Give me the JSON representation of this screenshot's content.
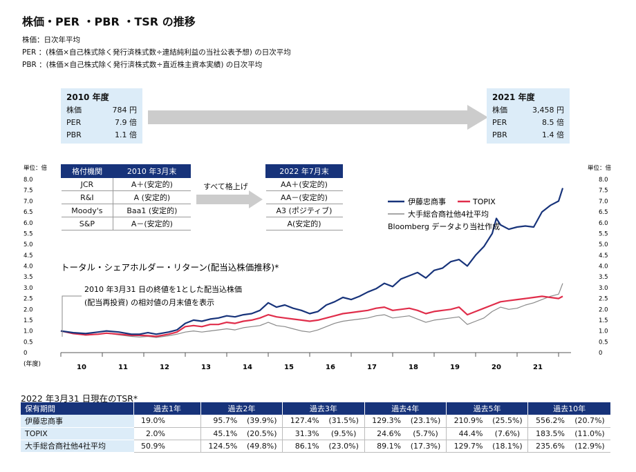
{
  "title": "株価・PER ・PBR ・TSR の推移",
  "definitions": [
    "株価：日次年平均",
    "PER ：(株価×自己株式除く発行済株式数÷連結純利益の当社公表予想) の日次平均",
    "PBR ：(株価×自己株式除く発行済株式数÷直近株主資本実績) の日次平均"
  ],
  "box2010": {
    "year": "2010 年度",
    "rows": [
      {
        "label": "株価",
        "value": "784 円"
      },
      {
        "label": "PER",
        "value": "7.9 倍"
      },
      {
        "label": "PBR",
        "value": "1.1 倍"
      }
    ]
  },
  "box2021": {
    "year": "2021 年度",
    "rows": [
      {
        "label": "株価",
        "value": "3,458 円"
      },
      {
        "label": "PER",
        "value": "8.5 倍"
      },
      {
        "label": "PBR",
        "value": "1.4 倍"
      }
    ]
  },
  "ratings": {
    "header": [
      "格付機関",
      "2010 年3月末"
    ],
    "rows": [
      [
        "JCR",
        "A＋(安定的)"
      ],
      [
        "R&I",
        "A (安定的)"
      ],
      [
        "Moody's",
        "Baa1 (安定的)"
      ],
      [
        "S&P",
        "A－(安定的)"
      ]
    ],
    "arrow_label": "すべて格上げ",
    "header_after": "2022 年7月末",
    "rows_after": [
      "AA＋(安定的)",
      "AA－(安定的)",
      "A3 (ポジティブ)",
      "A(安定的)"
    ]
  },
  "chart_data": {
    "type": "line",
    "title": "トータル・シェアホルダー・リターン(配当込株価推移)*",
    "note": [
      "2010 年3月31 日の終値を1とした配当込株価",
      "(配当再投資) の相対値の月末値を表示"
    ],
    "ylabel": "単位：倍",
    "xlabel": "(年度)",
    "source": "Bloomberg データより当社作成",
    "ylim": [
      0,
      8
    ],
    "yticks": [
      "0",
      "0.5",
      "1.0",
      "1.5",
      "2.0",
      "2.5",
      "3.0",
      "3.5",
      "4.0",
      "4.5",
      "5.0",
      "5.5",
      "6.0",
      "6.5",
      "7.0",
      "7.5",
      "8.0"
    ],
    "categories": [
      "10",
      "11",
      "12",
      "13",
      "14",
      "15",
      "16",
      "17",
      "18",
      "19",
      "20",
      "21"
    ],
    "x_range": [
      2010,
      2022.3
    ],
    "series": [
      {
        "name": "伊藤忠商事",
        "color": "#17337a",
        "points": [
          [
            2010,
            1.0
          ],
          [
            2010.3,
            0.92
          ],
          [
            2010.6,
            0.88
          ],
          [
            2010.9,
            0.95
          ],
          [
            2011.1,
            1.0
          ],
          [
            2011.4,
            0.95
          ],
          [
            2011.7,
            0.85
          ],
          [
            2011.9,
            0.85
          ],
          [
            2012.1,
            0.92
          ],
          [
            2012.3,
            0.85
          ],
          [
            2012.6,
            0.95
          ],
          [
            2012.8,
            1.05
          ],
          [
            2013.0,
            1.35
          ],
          [
            2013.2,
            1.5
          ],
          [
            2013.4,
            1.45
          ],
          [
            2013.6,
            1.55
          ],
          [
            2013.8,
            1.6
          ],
          [
            2014.0,
            1.7
          ],
          [
            2014.2,
            1.65
          ],
          [
            2014.4,
            1.75
          ],
          [
            2014.6,
            1.8
          ],
          [
            2014.8,
            1.95
          ],
          [
            2015.0,
            2.3
          ],
          [
            2015.2,
            2.1
          ],
          [
            2015.4,
            2.2
          ],
          [
            2015.6,
            2.05
          ],
          [
            2015.8,
            1.95
          ],
          [
            2016.0,
            1.8
          ],
          [
            2016.2,
            1.9
          ],
          [
            2016.4,
            2.2
          ],
          [
            2016.6,
            2.35
          ],
          [
            2016.8,
            2.55
          ],
          [
            2017.0,
            2.45
          ],
          [
            2017.2,
            2.6
          ],
          [
            2017.4,
            2.8
          ],
          [
            2017.6,
            2.95
          ],
          [
            2017.8,
            3.2
          ],
          [
            2018.0,
            3.05
          ],
          [
            2018.2,
            3.4
          ],
          [
            2018.4,
            3.55
          ],
          [
            2018.6,
            3.7
          ],
          [
            2018.8,
            3.45
          ],
          [
            2019.0,
            3.8
          ],
          [
            2019.2,
            3.9
          ],
          [
            2019.4,
            4.2
          ],
          [
            2019.6,
            4.3
          ],
          [
            2019.8,
            4.0
          ],
          [
            2020.0,
            4.5
          ],
          [
            2020.2,
            4.9
          ],
          [
            2020.4,
            5.5
          ],
          [
            2020.5,
            6.2
          ],
          [
            2020.6,
            5.9
          ],
          [
            2020.8,
            5.7
          ],
          [
            2021.0,
            5.8
          ],
          [
            2021.2,
            5.85
          ],
          [
            2021.4,
            5.8
          ],
          [
            2021.6,
            6.5
          ],
          [
            2021.8,
            6.8
          ],
          [
            2022.0,
            7.0
          ],
          [
            2022.1,
            7.6
          ]
        ]
      },
      {
        "name": "TOPIX",
        "color": "#e02d4a",
        "points": [
          [
            2010,
            1.0
          ],
          [
            2010.3,
            0.88
          ],
          [
            2010.6,
            0.82
          ],
          [
            2010.9,
            0.85
          ],
          [
            2011.1,
            0.9
          ],
          [
            2011.4,
            0.85
          ],
          [
            2011.7,
            0.8
          ],
          [
            2011.9,
            0.8
          ],
          [
            2012.1,
            0.78
          ],
          [
            2012.3,
            0.75
          ],
          [
            2012.6,
            0.85
          ],
          [
            2012.8,
            0.95
          ],
          [
            2013.0,
            1.2
          ],
          [
            2013.2,
            1.25
          ],
          [
            2013.4,
            1.2
          ],
          [
            2013.6,
            1.3
          ],
          [
            2013.8,
            1.3
          ],
          [
            2014.0,
            1.4
          ],
          [
            2014.2,
            1.35
          ],
          [
            2014.4,
            1.45
          ],
          [
            2014.6,
            1.5
          ],
          [
            2014.8,
            1.6
          ],
          [
            2015.0,
            1.75
          ],
          [
            2015.2,
            1.65
          ],
          [
            2015.4,
            1.6
          ],
          [
            2015.6,
            1.55
          ],
          [
            2015.8,
            1.5
          ],
          [
            2016.0,
            1.45
          ],
          [
            2016.2,
            1.5
          ],
          [
            2016.4,
            1.6
          ],
          [
            2016.6,
            1.7
          ],
          [
            2016.8,
            1.8
          ],
          [
            2017.0,
            1.85
          ],
          [
            2017.2,
            1.9
          ],
          [
            2017.4,
            1.95
          ],
          [
            2017.6,
            2.05
          ],
          [
            2017.8,
            2.1
          ],
          [
            2018.0,
            1.95
          ],
          [
            2018.2,
            2.0
          ],
          [
            2018.4,
            2.05
          ],
          [
            2018.6,
            1.95
          ],
          [
            2018.8,
            1.8
          ],
          [
            2019.0,
            1.9
          ],
          [
            2019.2,
            1.95
          ],
          [
            2019.4,
            2.0
          ],
          [
            2019.6,
            2.1
          ],
          [
            2019.8,
            1.75
          ],
          [
            2020.0,
            1.9
          ],
          [
            2020.2,
            2.05
          ],
          [
            2020.4,
            2.2
          ],
          [
            2020.6,
            2.35
          ],
          [
            2020.8,
            2.4
          ],
          [
            2021.0,
            2.45
          ],
          [
            2021.2,
            2.5
          ],
          [
            2021.4,
            2.55
          ],
          [
            2021.6,
            2.6
          ],
          [
            2021.8,
            2.55
          ],
          [
            2022.0,
            2.5
          ],
          [
            2022.1,
            2.6
          ]
        ]
      },
      {
        "name": "大手総合商社他4社平均",
        "color": "#888888",
        "points": [
          [
            2010,
            1.0
          ],
          [
            2010.3,
            0.9
          ],
          [
            2010.6,
            0.8
          ],
          [
            2010.9,
            0.85
          ],
          [
            2011.1,
            0.9
          ],
          [
            2011.4,
            0.82
          ],
          [
            2011.7,
            0.75
          ],
          [
            2011.9,
            0.72
          ],
          [
            2012.1,
            0.75
          ],
          [
            2012.3,
            0.7
          ],
          [
            2012.6,
            0.78
          ],
          [
            2012.8,
            0.85
          ],
          [
            2013.0,
            0.95
          ],
          [
            2013.2,
            1.0
          ],
          [
            2013.4,
            0.95
          ],
          [
            2013.6,
            1.0
          ],
          [
            2013.8,
            1.05
          ],
          [
            2014.0,
            1.1
          ],
          [
            2014.2,
            1.05
          ],
          [
            2014.4,
            1.15
          ],
          [
            2014.6,
            1.2
          ],
          [
            2014.8,
            1.25
          ],
          [
            2015.0,
            1.4
          ],
          [
            2015.2,
            1.25
          ],
          [
            2015.4,
            1.2
          ],
          [
            2015.6,
            1.1
          ],
          [
            2015.8,
            1.0
          ],
          [
            2016.0,
            0.95
          ],
          [
            2016.2,
            1.05
          ],
          [
            2016.4,
            1.2
          ],
          [
            2016.6,
            1.35
          ],
          [
            2016.8,
            1.45
          ],
          [
            2017.0,
            1.5
          ],
          [
            2017.2,
            1.55
          ],
          [
            2017.4,
            1.6
          ],
          [
            2017.6,
            1.7
          ],
          [
            2017.8,
            1.75
          ],
          [
            2018.0,
            1.6
          ],
          [
            2018.2,
            1.65
          ],
          [
            2018.4,
            1.7
          ],
          [
            2018.6,
            1.55
          ],
          [
            2018.8,
            1.4
          ],
          [
            2019.0,
            1.5
          ],
          [
            2019.2,
            1.55
          ],
          [
            2019.4,
            1.6
          ],
          [
            2019.6,
            1.65
          ],
          [
            2019.8,
            1.3
          ],
          [
            2020.0,
            1.45
          ],
          [
            2020.2,
            1.6
          ],
          [
            2020.4,
            1.9
          ],
          [
            2020.6,
            2.1
          ],
          [
            2020.8,
            2.0
          ],
          [
            2021.0,
            2.05
          ],
          [
            2021.2,
            2.2
          ],
          [
            2021.4,
            2.3
          ],
          [
            2021.6,
            2.45
          ],
          [
            2021.8,
            2.6
          ],
          [
            2022.0,
            2.7
          ],
          [
            2022.1,
            3.2
          ]
        ]
      }
    ],
    "legend_position": "top-right"
  },
  "tsr": {
    "title": "2022 年3月31 日現在のTSR*",
    "header": [
      "保有期間",
      "過去1年",
      "過去2年",
      "過去3年",
      "過去4年",
      "過去5年",
      "過去10年"
    ],
    "rows": [
      {
        "label": "伊藤忠商事",
        "cells": [
          [
            "19.0%",
            ""
          ],
          [
            "95.7%",
            "(39.9%)"
          ],
          [
            "127.4%",
            "(31.5%)"
          ],
          [
            "129.3%",
            "(23.1%)"
          ],
          [
            "210.9%",
            "(25.5%)"
          ],
          [
            "556.2%",
            "(20.7%)"
          ]
        ]
      },
      {
        "label": "TOPIX",
        "cells": [
          [
            "2.0%",
            ""
          ],
          [
            "45.1%",
            "(20.5%)"
          ],
          [
            "31.3%",
            "(9.5%)"
          ],
          [
            "24.6%",
            "(5.7%)"
          ],
          [
            "44.4%",
            "(7.6%)"
          ],
          [
            "183.5%",
            "(11.0%)"
          ]
        ]
      },
      {
        "label": "大手総合商社他4社平均",
        "cells": [
          [
            "50.9%",
            ""
          ],
          [
            "124.5%",
            "(49.8%)"
          ],
          [
            "86.1%",
            "(23.0%)"
          ],
          [
            "89.1%",
            "(17.3%)"
          ],
          [
            "129.7%",
            "(18.1%)"
          ],
          [
            "235.6%",
            "(12.9%)"
          ]
        ]
      }
    ]
  }
}
